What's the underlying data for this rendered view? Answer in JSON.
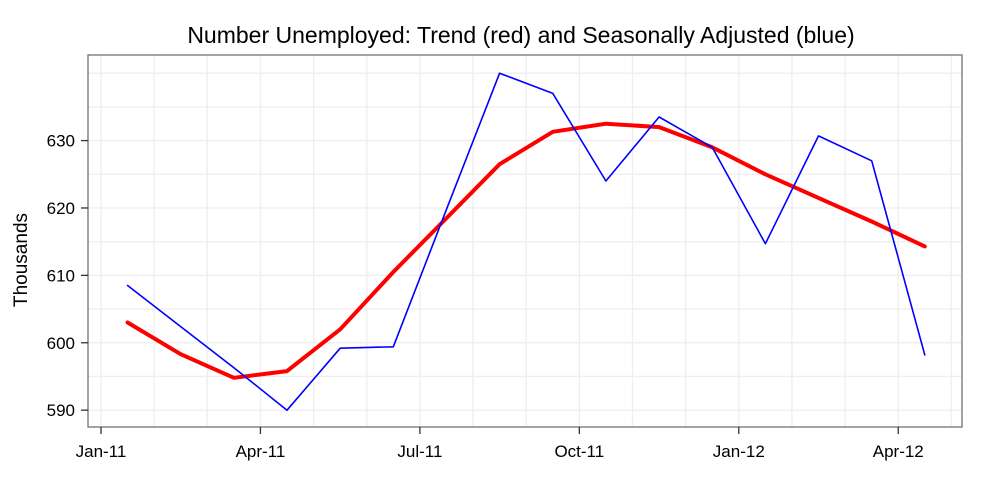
{
  "chart_data": {
    "type": "line",
    "title": "Number Unemployed: Trend (red) and Seasonally Adjusted (blue)",
    "xlabel": "",
    "ylabel": "Thousands",
    "categories": [
      "Jan-11",
      "Feb-11",
      "Mar-11",
      "Apr-11",
      "May-11",
      "Jun-11",
      "Jul-11",
      "Aug-11",
      "Sep-11",
      "Oct-11",
      "Nov-11",
      "Dec-11",
      "Jan-12",
      "Feb-12",
      "Mar-12",
      "Apr-12"
    ],
    "series": [
      {
        "name": "Trend",
        "color": "#ff0000",
        "stroke_width": 4,
        "values": [
          603.0,
          598.3,
          594.8,
          595.8,
          602.0,
          610.5,
          618.5,
          626.5,
          631.3,
          632.5,
          632.0,
          629.0,
          625.0,
          621.5,
          618.0,
          614.3
        ]
      },
      {
        "name": "Seasonally Adjusted",
        "color": "#0000ff",
        "stroke_width": 1.6,
        "values": [
          608.5,
          602.4,
          596.3,
          590.0,
          599.2,
          599.4,
          619.8,
          640.0,
          637.0,
          624.0,
          633.5,
          629.0,
          614.7,
          630.7,
          627.0,
          598.2
        ]
      }
    ],
    "x_tick_labels": [
      "Jan-11",
      "Apr-11",
      "Jul-11",
      "Oct-11",
      "Jan-12",
      "Apr-12"
    ],
    "x_tick_month_indices": [
      0,
      3,
      6,
      9,
      12,
      15
    ],
    "y_tick_labels": [
      "590",
      "600",
      "610",
      "620",
      "630"
    ],
    "y_ticks": [
      590,
      600,
      610,
      620,
      630
    ],
    "ylim": [
      587.5,
      642.7
    ],
    "grid": {
      "on": true,
      "color": "#efefef",
      "y_step": 5,
      "x_monthly": true
    },
    "legend": "none (series identified in title)",
    "points_at_mid_month": true
  }
}
